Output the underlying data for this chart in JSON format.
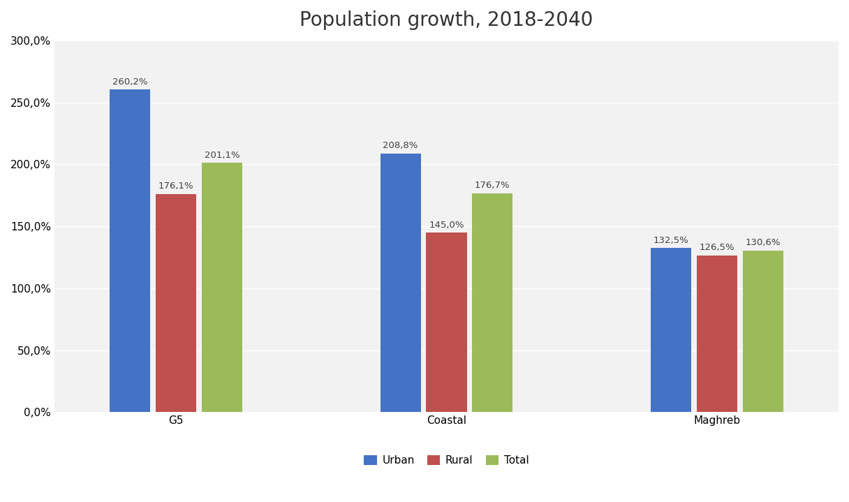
{
  "title": "Population growth, 2018-2040",
  "categories": [
    "G5",
    "Coastal",
    "Maghreb"
  ],
  "series": {
    "Urban": [
      260.2,
      208.8,
      132.5
    ],
    "Rural": [
      176.1,
      145.0,
      126.5
    ],
    "Total": [
      201.1,
      176.7,
      130.6
    ]
  },
  "colors": {
    "Urban": "#4472C4",
    "Rural": "#C0504D",
    "Total": "#9BBB59"
  },
  "ylim": [
    0,
    300
  ],
  "yticks": [
    0,
    50,
    100,
    150,
    200,
    250,
    300
  ],
  "bar_width": 0.15,
  "bar_spacing": 0.02,
  "title_fontsize": 20,
  "label_fontsize": 9.5,
  "tick_fontsize": 11,
  "legend_fontsize": 11,
  "background_color": "#FFFFFF",
  "plot_bg_color": "#F2F2F2",
  "grid_color": "#FFFFFF"
}
